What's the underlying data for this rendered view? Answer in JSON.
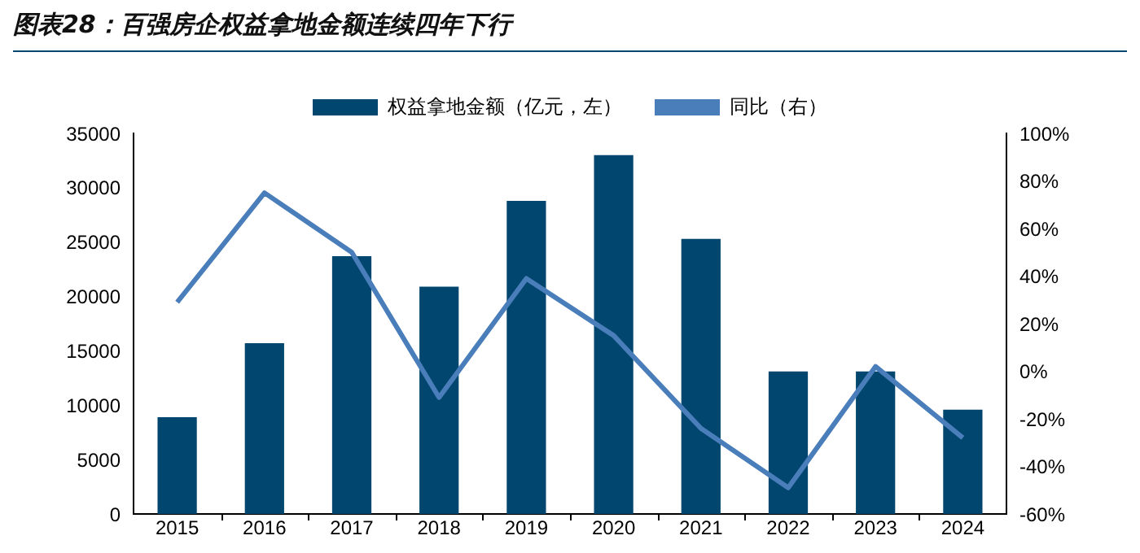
{
  "chart_data": {
    "type": "bar",
    "title": "图表28：百强房企权益拿地金额连续四年下行",
    "categories": [
      "2015",
      "2016",
      "2017",
      "2018",
      "2019",
      "2020",
      "2021",
      "2022",
      "2023",
      "2024"
    ],
    "series": [
      {
        "name": "权益拿地金额（亿元，左）",
        "type": "bar",
        "color": "#00466e",
        "values": [
          8900,
          15700,
          23700,
          20900,
          28800,
          33000,
          25300,
          13100,
          13100,
          9600
        ]
      },
      {
        "name": "同比（右）",
        "type": "line",
        "axis": "y2",
        "color": "#4a7ebb",
        "values": [
          29,
          75,
          50,
          -11,
          39,
          15,
          -24,
          -49,
          2,
          -28
        ]
      }
    ],
    "ylim": [
      0,
      35000
    ],
    "yticks": [
      0,
      5000,
      10000,
      15000,
      20000,
      25000,
      30000,
      35000
    ],
    "y2lim": [
      -60,
      100
    ],
    "y2ticks": [
      {
        "value": -60,
        "label": "-60%"
      },
      {
        "value": -40,
        "label": "-40%"
      },
      {
        "value": -20,
        "label": "-20%"
      },
      {
        "value": 0,
        "label": "0%"
      },
      {
        "value": 20,
        "label": "20%"
      },
      {
        "value": 40,
        "label": "40%"
      },
      {
        "value": 60,
        "label": "60%"
      },
      {
        "value": 80,
        "label": "80%"
      },
      {
        "value": 100,
        "label": "100%"
      }
    ],
    "legend": "top",
    "grid": false,
    "marker": "none",
    "line_style": "solid"
  }
}
